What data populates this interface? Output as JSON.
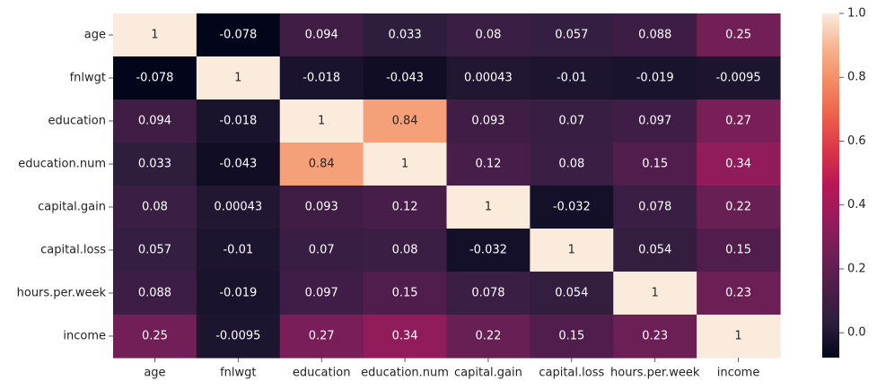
{
  "chart_data": {
    "type": "heatmap",
    "title": "",
    "xlabel": "",
    "ylabel": "",
    "categories": [
      "age",
      "fnlwgt",
      "education",
      "education.num",
      "capital.gain",
      "capital.loss",
      "hours.per.week",
      "income"
    ],
    "matrix": [
      [
        1,
        -0.078,
        0.094,
        0.033,
        0.08,
        0.057,
        0.088,
        0.25
      ],
      [
        -0.078,
        1,
        -0.018,
        -0.043,
        0.00043,
        -0.01,
        -0.019,
        -0.0095
      ],
      [
        0.094,
        -0.018,
        1,
        0.84,
        0.093,
        0.07,
        0.097,
        0.27
      ],
      [
        0.033,
        -0.043,
        0.84,
        1,
        0.12,
        0.08,
        0.15,
        0.34
      ],
      [
        0.08,
        0.00043,
        0.093,
        0.12,
        1,
        -0.032,
        0.078,
        0.22
      ],
      [
        0.057,
        -0.01,
        0.07,
        0.08,
        -0.032,
        1,
        0.054,
        0.15
      ],
      [
        0.088,
        -0.019,
        0.097,
        0.15,
        0.078,
        0.054,
        1,
        0.23
      ],
      [
        0.25,
        -0.0095,
        0.27,
        0.34,
        0.22,
        0.15,
        0.23,
        1
      ]
    ],
    "cell_labels": [
      [
        "1",
        "-0.078",
        "0.094",
        "0.033",
        "0.08",
        "0.057",
        "0.088",
        "0.25"
      ],
      [
        "-0.078",
        "1",
        "-0.018",
        "-0.043",
        "0.00043",
        "-0.01",
        "-0.019",
        "-0.0095"
      ],
      [
        "0.094",
        "-0.018",
        "1",
        "0.84",
        "0.093",
        "0.07",
        "0.097",
        "0.27"
      ],
      [
        "0.033",
        "-0.043",
        "0.84",
        "1",
        "0.12",
        "0.08",
        "0.15",
        "0.34"
      ],
      [
        "0.08",
        "0.00043",
        "0.093",
        "0.12",
        "1",
        "-0.032",
        "0.078",
        "0.22"
      ],
      [
        "0.057",
        "-0.01",
        "0.07",
        "0.08",
        "-0.032",
        "1",
        "0.054",
        "0.15"
      ],
      [
        "0.088",
        "-0.019",
        "0.097",
        "0.15",
        "0.078",
        "0.054",
        "1",
        "0.23"
      ],
      [
        "0.25",
        "-0.0095",
        "0.27",
        "0.34",
        "0.22",
        "0.15",
        "0.23",
        "1"
      ]
    ],
    "colorbar": {
      "vmin": -0.078,
      "vmax": 1,
      "ticks": [
        0.0,
        0.2,
        0.4,
        0.6,
        0.8,
        1.0
      ],
      "tick_labels": [
        "0.0",
        "0.2",
        "0.4",
        "0.6",
        "0.8",
        "1.0"
      ],
      "colormap": "rocket",
      "colors": [
        "#03051a",
        "#2c1e3d",
        "#4c1d4b",
        "#701f57",
        "#961c5b",
        "#ba1656",
        "#da3447",
        "#ed5f4b",
        "#f38a63",
        "#f6b48e",
        "#faebdd"
      ]
    },
    "grid": false,
    "legend": "none"
  }
}
